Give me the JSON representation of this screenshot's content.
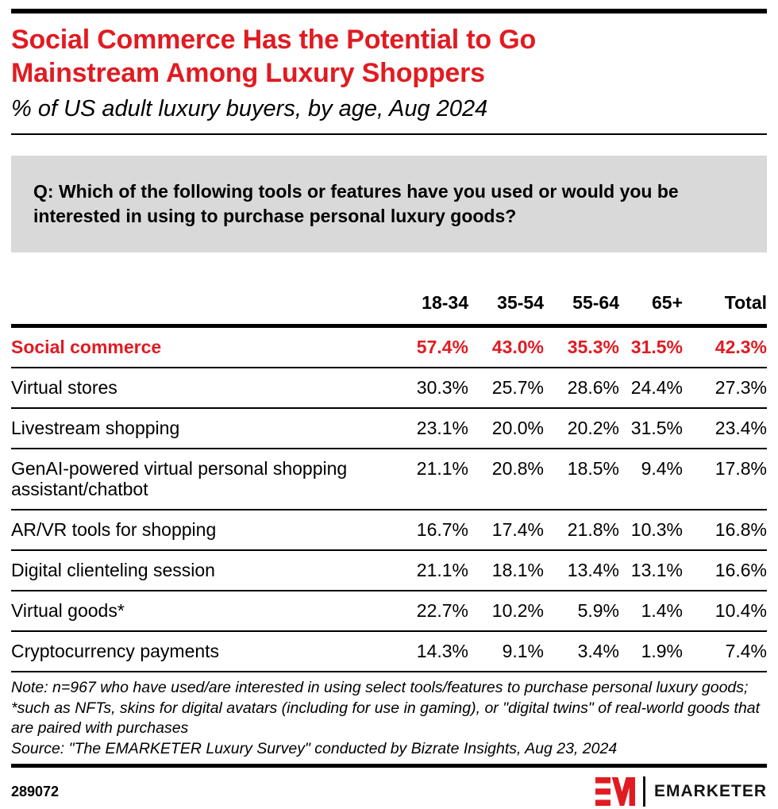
{
  "colors": {
    "accent_red": "#e11b22",
    "question_box_gray": "#d9d9d9",
    "rule_black": "#000000"
  },
  "header": {
    "title_line1": "Social Commerce Has the Potential to Go",
    "title_line2": "Mainstream Among Luxury Shoppers",
    "subtitle": "% of US adult luxury buyers, by age, Aug 2024"
  },
  "question": {
    "text": "Q: Which of the following tools or features have you used or would you be interested in using to purchase personal luxury goods?"
  },
  "chart_data": {
    "type": "table",
    "title": "Social Commerce Has the Potential to Go Mainstream Among Luxury Shoppers",
    "subtitle": "% of US adult luxury buyers, by age, Aug 2024",
    "columns": [
      "18-34",
      "35-54",
      "55-64",
      "65+",
      "Total"
    ],
    "rows": [
      {
        "label": "Social commerce",
        "values": [
          "57.4%",
          "43.0%",
          "35.3%",
          "31.5%",
          "42.3%"
        ],
        "highlight": true
      },
      {
        "label": "Virtual stores",
        "values": [
          "30.3%",
          "25.7%",
          "28.6%",
          "24.4%",
          "27.3%"
        ],
        "highlight": false
      },
      {
        "label": "Livestream shopping",
        "values": [
          "23.1%",
          "20.0%",
          "20.2%",
          "31.5%",
          "23.4%"
        ],
        "highlight": false
      },
      {
        "label": "GenAI-powered virtual personal shopping assistant/chatbot",
        "values": [
          "21.1%",
          "20.8%",
          "18.5%",
          "9.4%",
          "17.8%"
        ],
        "highlight": false
      },
      {
        "label": "AR/VR tools for shopping",
        "values": [
          "16.7%",
          "17.4%",
          "21.8%",
          "10.3%",
          "16.8%"
        ],
        "highlight": false
      },
      {
        "label": "Digital clienteling session",
        "values": [
          "21.1%",
          "18.1%",
          "13.4%",
          "13.1%",
          "16.6%"
        ],
        "highlight": false
      },
      {
        "label": "Virtual goods*",
        "values": [
          "22.7%",
          "10.2%",
          "5.9%",
          "1.4%",
          "10.4%"
        ],
        "highlight": false
      },
      {
        "label": "Cryptocurrency payments",
        "values": [
          "14.3%",
          "9.1%",
          "3.4%",
          "1.9%",
          "7.4%"
        ],
        "highlight": false
      }
    ]
  },
  "footnote": {
    "note": "Note: n=967 who have used/are interested in using select tools/features to purchase personal luxury goods; *such as NFTs, skins for digital avatars (including for use in gaming), or \"digital twins\" of real-world goods that are paired with purchases",
    "source": "Source: \"The EMARKETER Luxury Survey\" conducted by Bizrate Insights, Aug 23, 2024"
  },
  "footer": {
    "chart_id": "289072",
    "brand": "EMARKETER"
  }
}
